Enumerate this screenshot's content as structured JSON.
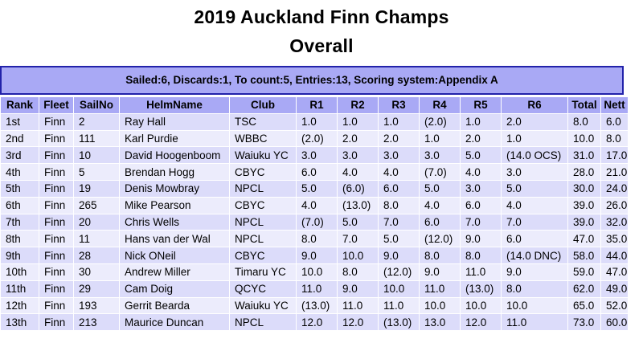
{
  "header": {
    "title": "2019 Auckland Finn Champs",
    "subtitle": "Overall",
    "info": "Sailed:6, Discards:1, To count:5, Entries:13, Scoring system:Appendix A"
  },
  "table": {
    "columns": [
      "Rank",
      "Fleet",
      "SailNo",
      "HelmName",
      "Club",
      "R1",
      "R2",
      "R3",
      "R4",
      "R5",
      "R6",
      "Total",
      "Nett"
    ],
    "rows": [
      [
        "1st",
        "Finn",
        "2",
        "Ray Hall",
        "TSC",
        "1.0",
        "1.0",
        "1.0",
        "(2.0)",
        "1.0",
        "2.0",
        "8.0",
        "6.0"
      ],
      [
        "2nd",
        "Finn",
        "111",
        "Karl Purdie",
        "WBBC",
        "(2.0)",
        "2.0",
        "2.0",
        "1.0",
        "2.0",
        "1.0",
        "10.0",
        "8.0"
      ],
      [
        "3rd",
        "Finn",
        "10",
        "David Hoogenboom",
        "Waiuku YC",
        "3.0",
        "3.0",
        "3.0",
        "3.0",
        "5.0",
        "(14.0 OCS)",
        "31.0",
        "17.0"
      ],
      [
        "4th",
        "Finn",
        "5",
        "Brendan Hogg",
        "CBYC",
        "6.0",
        "4.0",
        "4.0",
        "(7.0)",
        "4.0",
        "3.0",
        "28.0",
        "21.0"
      ],
      [
        "5th",
        "Finn",
        "19",
        "Denis Mowbray",
        "NPCL",
        "5.0",
        "(6.0)",
        "6.0",
        "5.0",
        "3.0",
        "5.0",
        "30.0",
        "24.0"
      ],
      [
        "6th",
        "Finn",
        "265",
        "Mike Pearson",
        "CBYC",
        "4.0",
        "(13.0)",
        "8.0",
        "4.0",
        "6.0",
        "4.0",
        "39.0",
        "26.0"
      ],
      [
        "7th",
        "Finn",
        "20",
        "Chris Wells",
        "NPCL",
        "(7.0)",
        "5.0",
        "7.0",
        "6.0",
        "7.0",
        "7.0",
        "39.0",
        "32.0"
      ],
      [
        "8th",
        "Finn",
        "11",
        "Hans van der Wal",
        "NPCL",
        "8.0",
        "7.0",
        "5.0",
        "(12.0)",
        "9.0",
        "6.0",
        "47.0",
        "35.0"
      ],
      [
        "9th",
        "Finn",
        "28",
        "Nick ONeil",
        "CBYC",
        "9.0",
        "10.0",
        "9.0",
        "8.0",
        "8.0",
        "(14.0 DNC)",
        "58.0",
        "44.0"
      ],
      [
        "10th",
        "Finn",
        "30",
        "Andrew Miller",
        "Timaru YC",
        "10.0",
        "8.0",
        "(12.0)",
        "9.0",
        "11.0",
        "9.0",
        "59.0",
        "47.0"
      ],
      [
        "11th",
        "Finn",
        "29",
        "Cam Doig",
        "QCYC",
        "11.0",
        "9.0",
        "10.0",
        "11.0",
        "(13.0)",
        "8.0",
        "62.0",
        "49.0"
      ],
      [
        "12th",
        "Finn",
        "193",
        "Gerrit Bearda",
        "Waiuku YC",
        "(13.0)",
        "11.0",
        "11.0",
        "10.0",
        "10.0",
        "10.0",
        "65.0",
        "52.0"
      ],
      [
        "13th",
        "Finn",
        "213",
        "Maurice Duncan",
        "NPCL",
        "12.0",
        "12.0",
        "(13.0)",
        "13.0",
        "12.0",
        "11.0",
        "73.0",
        "60.0"
      ]
    ]
  },
  "colors": {
    "header_bg": "#a9a9f5",
    "row_bg": "#dcdcfa",
    "row_alt_bg": "#ececfc",
    "border": "#2222aa"
  }
}
